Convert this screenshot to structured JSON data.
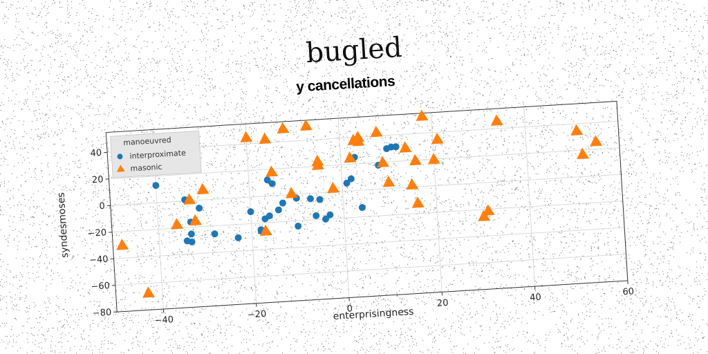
{
  "page_title": "bugled",
  "colors": {
    "interproximate": "#1f77b4",
    "masonic": "#ff7f0e",
    "grid": "#d9d9d9",
    "legend_bg": "#e6e6e6"
  },
  "chart_data": {
    "type": "scatter",
    "title": "y cancellations",
    "xlabel": "enterprisingness",
    "ylabel": "syndesmoses",
    "xlim": [
      -50,
      60
    ],
    "ylim": [
      -80,
      55
    ],
    "xticks": [
      -40,
      -20,
      0,
      20,
      40,
      60
    ],
    "yticks": [
      -80,
      -60,
      -40,
      -20,
      0,
      20,
      40
    ],
    "xtick_labels": [
      "−40",
      "−20",
      "0",
      "20",
      "40",
      "60"
    ],
    "ytick_labels": [
      "−80",
      "−60",
      "−40",
      "−20",
      "0",
      "20",
      "40"
    ],
    "grid": true,
    "legend": {
      "title": "manoeuvred",
      "location": "top-left"
    },
    "series": [
      {
        "name": "interproximate",
        "marker": "circle",
        "x": [
          -40,
          -34,
          -33,
          -31,
          -33,
          -33,
          -34,
          -28,
          -23,
          -20,
          -18,
          -17,
          -16,
          -18,
          -16,
          -15,
          -14,
          -13,
          -10,
          -10,
          -7,
          -6,
          -5,
          -4,
          -3,
          1,
          2,
          3,
          4,
          8,
          10,
          11,
          12,
          12
        ],
        "y": [
          13,
          1,
          -16,
          -6,
          -25,
          -31,
          -30,
          -26,
          -30,
          -11,
          -26,
          -17,
          -15,
          -25,
          12,
          9,
          -11,
          -6,
          -3,
          -24,
          -4,
          -17,
          -5,
          -20,
          -17,
          6,
          9,
          25,
          -13,
          18,
          30,
          31,
          31,
          31
        ]
      },
      {
        "name": "masonic",
        "marker": "triangle",
        "x": [
          -48,
          -43,
          -36,
          -33,
          -32,
          -30,
          -20,
          -17,
          -16,
          -15,
          -12,
          -11,
          -7,
          -5,
          -5,
          -2,
          2,
          3,
          4,
          4,
          8,
          9,
          10,
          14,
          15,
          16,
          16,
          18,
          20,
          21,
          30,
          31,
          34,
          51,
          52,
          55
        ],
        "y": [
          -30,
          -67,
          -17,
          1,
          -15,
          8,
          45,
          -26,
          43,
          18,
          50,
          1,
          51,
          24,
          21,
          3,
          25,
          38,
          37,
          40,
          43,
          20,
          5,
          30,
          2,
          20,
          -12,
          53,
          20,
          35,
          -25,
          -21,
          46,
          35,
          17,
          26
        ]
      }
    ]
  }
}
